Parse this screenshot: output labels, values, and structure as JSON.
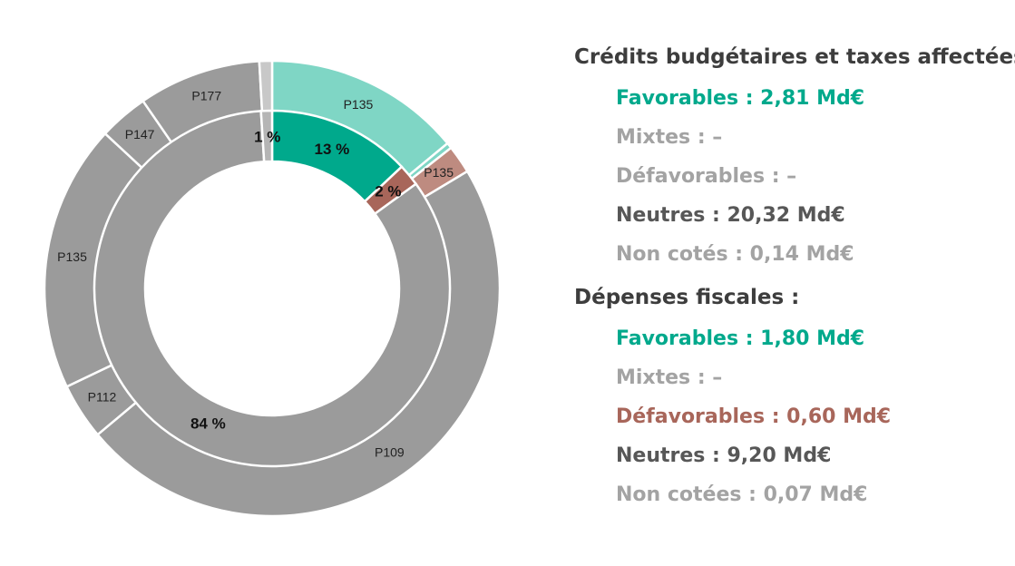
{
  "chart_data": {
    "type": "pie",
    "inner_ring": {
      "slices": [
        {
          "label": "13 %",
          "value": 13,
          "color": "#00a98c"
        },
        {
          "label": "2 %",
          "value": 2,
          "color": "#a8665a"
        },
        {
          "label": "84 %",
          "value": 84,
          "color": "#9b9b9b"
        },
        {
          "label": "1 %",
          "value": 1,
          "color": "#b5b5b5"
        }
      ]
    },
    "outer_ring": {
      "slices": [
        {
          "label": "P135",
          "value": 14,
          "color": "#7fd6c5"
        },
        {
          "label": "",
          "value": 0.4,
          "color": "#7fd6c5"
        },
        {
          "label": "P135",
          "value": 2,
          "color": "#be8b80"
        },
        {
          "label": "P109",
          "value": 47.5,
          "color": "#9b9b9b"
        },
        {
          "label": "P112",
          "value": 4,
          "color": "#9b9b9b"
        },
        {
          "label": "P135",
          "value": 19,
          "color": "#9b9b9b"
        },
        {
          "label": "P147",
          "value": 3.5,
          "color": "#9b9b9b"
        },
        {
          "label": "P177",
          "value": 8.7,
          "color": "#9b9b9b"
        },
        {
          "label": "",
          "value": 0.9,
          "color": "#c8c8c8"
        }
      ]
    }
  },
  "legend": {
    "group1": {
      "heading": "Crédits budgétaires et taxes affectées :",
      "items": [
        {
          "text": "Favorables : 2,81 Md€",
          "color": "#00a98c"
        },
        {
          "text": "Mixtes : –",
          "color": "#a3a3a3"
        },
        {
          "text": "Défavorables : –",
          "color": "#a3a3a3"
        },
        {
          "text": "Neutres : 20,32 Md€",
          "color": "#575757"
        },
        {
          "text": "Non cotés : 0,14 Md€",
          "color": "#a3a3a3"
        }
      ]
    },
    "group2": {
      "heading": "Dépenses fiscales :",
      "items": [
        {
          "text": "Favorables : 1,80 Md€",
          "color": "#00a98c"
        },
        {
          "text": "Mixtes : –",
          "color": "#a3a3a3"
        },
        {
          "text": "Défavorables : 0,60 Md€",
          "color": "#a8665a"
        },
        {
          "text": "Neutres : 9,20 Md€",
          "color": "#575757"
        },
        {
          "text": "Non cotées : 0,07 Md€",
          "color": "#a3a3a3"
        }
      ]
    }
  }
}
